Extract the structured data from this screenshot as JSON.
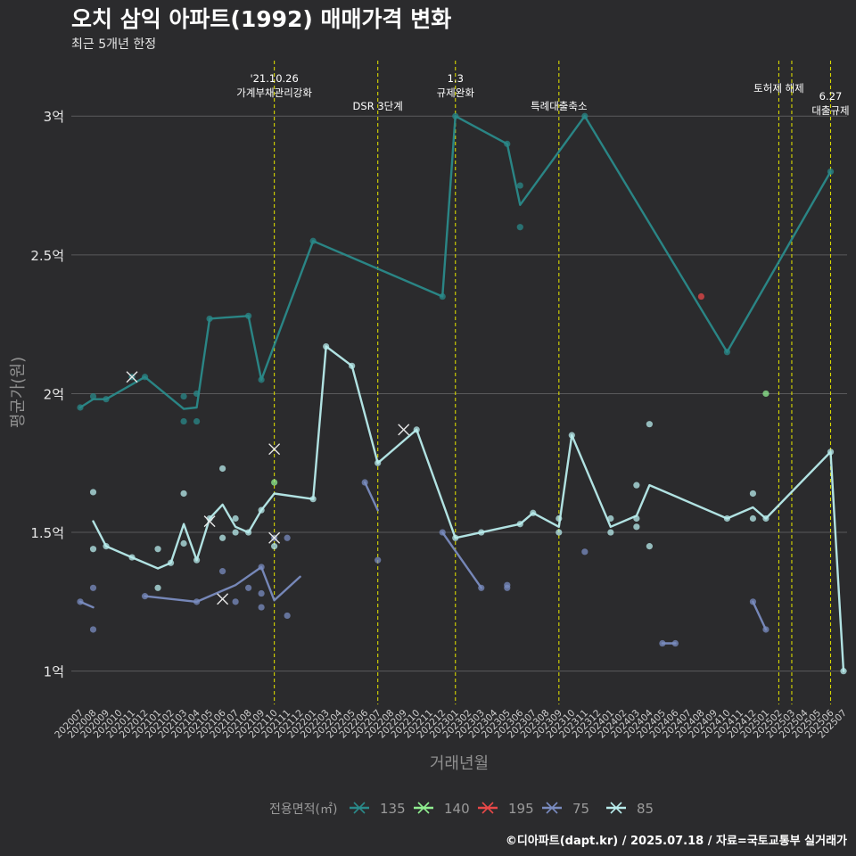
{
  "chart_data": {
    "type": "line",
    "title": "오치 삼익 아파트(1992) 매매가격 변화",
    "subtitle": "최근 5개년 한정",
    "xlabel": "거래년월",
    "ylabel": "평균가(원)",
    "caption": "©디아파트(dapt.kr) / 2025.07.18 / 자료=국토교통부 실거래가",
    "legend_title": "전용면적(㎡)",
    "legend_position": "bottom",
    "grid": "horizontal",
    "x_categories": [
      "202007",
      "202008",
      "202009",
      "202010",
      "202011",
      "202012",
      "202101",
      "202102",
      "202103",
      "202104",
      "202105",
      "202106",
      "202107",
      "202108",
      "202109",
      "202110",
      "202111",
      "202112",
      "202201",
      "202203",
      "202204",
      "202205",
      "202206",
      "202207",
      "202208",
      "202209",
      "202210",
      "202211",
      "202212",
      "202301",
      "202302",
      "202303",
      "202304",
      "202305",
      "202306",
      "202307",
      "202308",
      "202309",
      "202310",
      "202311",
      "202312",
      "202401",
      "202402",
      "202403",
      "202404",
      "202405",
      "202406",
      "202407",
      "202408",
      "202409",
      "202410",
      "202411",
      "202412",
      "202501",
      "202502",
      "202503",
      "202504",
      "202505",
      "202506",
      "202507"
    ],
    "ylim": [
      0.88,
      3.2
    ],
    "y_ticks": [
      1,
      1.5,
      2,
      2.5,
      3
    ],
    "y_tick_labels": [
      "1억",
      "1.5억",
      "2억",
      "2.5억",
      "3억"
    ],
    "series": [
      {
        "name": "135",
        "color": "#2a8a8a",
        "line": [
          [
            "202007",
            1.95
          ],
          [
            "202008",
            1.98
          ],
          [
            "202009",
            1.98
          ],
          [
            "202012",
            2.06
          ],
          [
            "202103",
            1.945
          ],
          [
            "202104",
            1.95
          ],
          [
            "202105",
            2.27
          ],
          [
            "202108",
            2.28
          ],
          [
            "202109",
            2.05
          ],
          [
            "202201",
            2.55
          ],
          [
            "202212",
            2.35
          ],
          [
            "202301",
            3.0
          ],
          [
            "202305",
            2.9
          ],
          [
            "202306",
            2.68
          ],
          [
            "202311",
            3.0
          ],
          [
            "202410",
            2.15
          ],
          [
            "202506",
            2.8
          ]
        ],
        "points": [
          [
            "202007",
            1.95
          ],
          [
            "202008",
            1.99
          ],
          [
            "202009",
            1.98
          ],
          [
            "202011",
            2.06
          ],
          [
            "202012",
            2.06
          ],
          [
            "202103",
            1.99
          ],
          [
            "202103",
            1.9
          ],
          [
            "202104",
            2.0
          ],
          [
            "202104",
            1.9
          ],
          [
            "202105",
            2.27
          ],
          [
            "202108",
            2.28
          ],
          [
            "202109",
            2.05
          ],
          [
            "202201",
            2.55
          ],
          [
            "202212",
            2.35
          ],
          [
            "202301",
            3.0
          ],
          [
            "202305",
            2.9
          ],
          [
            "202306",
            2.75
          ],
          [
            "202306",
            2.6
          ],
          [
            "202311",
            3.0
          ],
          [
            "202410",
            2.15
          ],
          [
            "202506",
            2.8
          ]
        ],
        "crosses": [
          [
            "202011",
            2.06
          ]
        ]
      },
      {
        "name": "140",
        "color": "#90ee90",
        "line": [],
        "points": [
          [
            "202110",
            1.68
          ],
          [
            "202501",
            2.0
          ]
        ],
        "crosses": [
          [
            "202110",
            1.8
          ]
        ]
      },
      {
        "name": "195",
        "color": "#e84848",
        "line": [],
        "points": [
          [
            "202408",
            2.35
          ]
        ],
        "crosses": []
      },
      {
        "name": "75",
        "color": "#7a8cc0",
        "line": [
          [
            "202007",
            1.25
          ],
          [
            "202008",
            1.23
          ]
        ],
        "line_segments": [
          [
            [
              "202007",
              1.25
            ],
            [
              "202008",
              1.23
            ]
          ],
          [
            [
              "202012",
              1.27
            ],
            [
              "202104",
              1.25
            ],
            [
              "202107",
              1.31
            ],
            [
              "202109",
              1.375
            ],
            [
              "202110",
              1.255
            ],
            [
              "202112",
              1.34
            ]
          ],
          [
            [
              "202206",
              1.68
            ],
            [
              "202207",
              1.58
            ]
          ],
          [
            [
              "202212",
              1.5
            ],
            [
              "202303",
              1.3
            ]
          ],
          [
            [
              "202405",
              1.1
            ],
            [
              "202406",
              1.1
            ]
          ],
          [
            [
              "202412",
              1.25
            ],
            [
              "202501",
              1.15
            ]
          ]
        ],
        "points": [
          [
            "202007",
            1.25
          ],
          [
            "202008",
            1.3
          ],
          [
            "202008",
            1.15
          ],
          [
            "202012",
            1.27
          ],
          [
            "202104",
            1.25
          ],
          [
            "202106",
            1.36
          ],
          [
            "202107",
            1.25
          ],
          [
            "202108",
            1.3
          ],
          [
            "202109",
            1.375
          ],
          [
            "202109",
            1.23
          ],
          [
            "202109",
            1.28
          ],
          [
            "202110",
            1.48
          ],
          [
            "202111",
            1.48
          ],
          [
            "202111",
            1.2
          ],
          [
            "202206",
            1.68
          ],
          [
            "202207",
            1.4
          ],
          [
            "202212",
            1.5
          ],
          [
            "202303",
            1.3
          ],
          [
            "202305",
            1.31
          ],
          [
            "202305",
            1.3
          ],
          [
            "202311",
            1.43
          ],
          [
            "202405",
            1.1
          ],
          [
            "202406",
            1.1
          ],
          [
            "202412",
            1.25
          ],
          [
            "202501",
            1.15
          ]
        ],
        "crosses": [
          [
            "202106",
            1.26
          ],
          [
            "202110",
            1.48
          ]
        ]
      },
      {
        "name": "85",
        "color": "#b8ecec",
        "line": [
          [
            "202008",
            1.54
          ],
          [
            "202009",
            1.45
          ],
          [
            "202011",
            1.41
          ],
          [
            "202101",
            1.37
          ],
          [
            "202102",
            1.39
          ],
          [
            "202103",
            1.53
          ],
          [
            "202104",
            1.4
          ],
          [
            "202105",
            1.55
          ],
          [
            "202106",
            1.6
          ],
          [
            "202107",
            1.52
          ],
          [
            "202108",
            1.5
          ],
          [
            "202109",
            1.58
          ],
          [
            "202110",
            1.64
          ],
          [
            "202201",
            1.62
          ],
          [
            "202203",
            2.17
          ],
          [
            "202205",
            2.1
          ],
          [
            "202207",
            1.75
          ],
          [
            "202210",
            1.87
          ],
          [
            "202301",
            1.48
          ],
          [
            "202303",
            1.5
          ],
          [
            "202306",
            1.53
          ],
          [
            "202307",
            1.57
          ],
          [
            "202309",
            1.52
          ],
          [
            "202310",
            1.85
          ],
          [
            "202401",
            1.52
          ],
          [
            "202403",
            1.56
          ],
          [
            "202404",
            1.67
          ],
          [
            "202410",
            1.55
          ],
          [
            "202412",
            1.59
          ],
          [
            "202501",
            1.55
          ],
          [
            "202506",
            1.79
          ],
          [
            "202507",
            1.0
          ]
        ],
        "points": [
          [
            "202008",
            1.645
          ],
          [
            "202008",
            1.44
          ],
          [
            "202009",
            1.45
          ],
          [
            "202011",
            1.41
          ],
          [
            "202101",
            1.44
          ],
          [
            "202101",
            1.3
          ],
          [
            "202102",
            1.39
          ],
          [
            "202103",
            1.64
          ],
          [
            "202103",
            1.46
          ],
          [
            "202104",
            1.4
          ],
          [
            "202105",
            1.55
          ],
          [
            "202106",
            1.73
          ],
          [
            "202106",
            1.48
          ],
          [
            "202107",
            1.55
          ],
          [
            "202107",
            1.5
          ],
          [
            "202108",
            1.5
          ],
          [
            "202109",
            1.58
          ],
          [
            "202110",
            1.45
          ],
          [
            "202201",
            1.62
          ],
          [
            "202203",
            2.17
          ],
          [
            "202205",
            2.1
          ],
          [
            "202207",
            1.75
          ],
          [
            "202210",
            1.87
          ],
          [
            "202301",
            1.48
          ],
          [
            "202303",
            1.5
          ],
          [
            "202306",
            1.53
          ],
          [
            "202307",
            1.57
          ],
          [
            "202309",
            1.55
          ],
          [
            "202309",
            1.5
          ],
          [
            "202310",
            1.85
          ],
          [
            "202401",
            1.55
          ],
          [
            "202401",
            1.5
          ],
          [
            "202403",
            1.67
          ],
          [
            "202403",
            1.55
          ],
          [
            "202403",
            1.52
          ],
          [
            "202404",
            1.89
          ],
          [
            "202404",
            1.45
          ],
          [
            "202410",
            1.55
          ],
          [
            "202412",
            1.64
          ],
          [
            "202412",
            1.55
          ],
          [
            "202501",
            1.55
          ],
          [
            "202506",
            1.79
          ],
          [
            "202507",
            1.0
          ]
        ],
        "crosses": [
          [
            "202105",
            1.54
          ],
          [
            "202209",
            1.87
          ]
        ]
      }
    ],
    "events": [
      {
        "x": "202110",
        "lines": [
          "'21.10.26",
          "가계부채관리강화"
        ]
      },
      {
        "x": "202207",
        "lines": [
          "DSR 3단계"
        ]
      },
      {
        "x": "202301",
        "lines": [
          "1.3",
          "규제완화"
        ]
      },
      {
        "x": "202309",
        "lines": [
          "특례대출축소"
        ]
      },
      {
        "x": "202502",
        "lines": [
          "토허제 해제"
        ]
      },
      {
        "x": "202503",
        "lines": []
      },
      {
        "x": "202506",
        "lines": [
          "6.27",
          "대출규제"
        ]
      }
    ]
  }
}
